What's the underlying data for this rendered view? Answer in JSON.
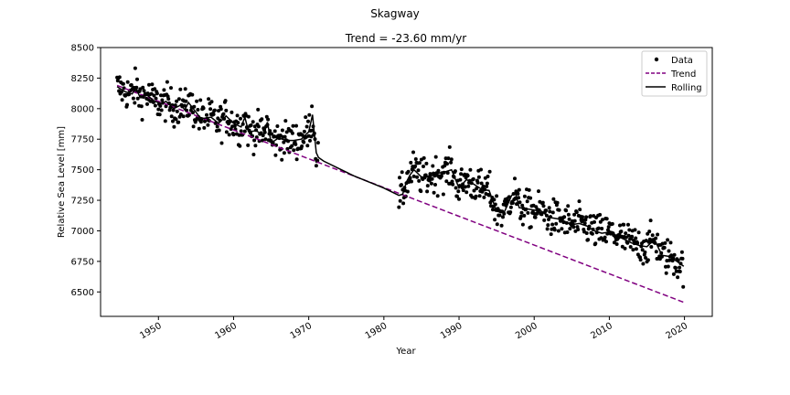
{
  "chart_data": {
    "type": "scatter",
    "suptitle": "Skagway",
    "title": "Trend = -23.60 mm/yr",
    "xlabel": "Year",
    "ylabel": "Relative Sea Level [mm]",
    "xlim": [
      1942.3,
      2023.7
    ],
    "ylim": [
      6300,
      8500
    ],
    "xticks": [
      1950,
      1960,
      1970,
      1980,
      1990,
      2000,
      2010,
      2020
    ],
    "yticks": [
      6500,
      6750,
      7000,
      7250,
      7500,
      7750,
      8000,
      8250,
      8500
    ],
    "grid": false,
    "legend_position": "top-right",
    "colors": {
      "data": "#000000",
      "trend": "#800080",
      "rolling": "#000000"
    },
    "series": [
      {
        "name": "Data",
        "kind": "points"
      },
      {
        "name": "Trend",
        "kind": "dashed-line",
        "x": [
          1944.5,
          2019.9
        ],
        "y": [
          8190,
          6415
        ]
      },
      {
        "name": "Rolling",
        "kind": "line",
        "x": [
          1944.5,
          1945.5,
          1946.5,
          1947.0,
          1947.5,
          1948.5,
          1949.5,
          1950.5,
          1951.0,
          1952.0,
          1953.0,
          1953.5,
          1954.0,
          1955.0,
          1955.5,
          1956.0,
          1957.0,
          1958.0,
          1959.0,
          1960.0,
          1961.0,
          1961.5,
          1962.0,
          1963.0,
          1964.0,
          1964.5,
          1965.0,
          1966.0,
          1967.0,
          1968.0,
          1969.0,
          1970.0,
          1970.5,
          1971.0,
          1971.3,
          1972.0,
          1976.0,
          1980.0,
          1982.0,
          1982.5,
          1983.0,
          1983.5,
          1984.0,
          1985.0,
          1986.0,
          1987.0,
          1988.0,
          1989.0,
          1990.0,
          1991.0,
          1992.0,
          1993.0,
          1994.0,
          1995.0,
          1996.0,
          1997.0,
          1997.5,
          1998.0,
          1999.0,
          2000.0,
          2001.0,
          2002.0,
          2003.0,
          2004.0,
          2005.0,
          2006.0,
          2007.0,
          2008.0,
          2009.0,
          2010.0,
          2011.0,
          2012.0,
          2013.0,
          2014.0,
          2015.0,
          2016.0,
          2017.0,
          2018.0,
          2019.0,
          2019.9
        ],
        "y": [
          8180,
          8140,
          8120,
          8170,
          8100,
          8110,
          8060,
          8040,
          8060,
          8000,
          8030,
          7990,
          8050,
          7970,
          7930,
          7920,
          7930,
          7880,
          7940,
          7880,
          7850,
          7930,
          7810,
          7820,
          7780,
          7890,
          7720,
          7760,
          7740,
          7740,
          7750,
          7810,
          7950,
          7640,
          7600,
          7570,
          7450,
          7350,
          7290,
          7300,
          7400,
          7460,
          7500,
          7440,
          7440,
          7470,
          7480,
          7500,
          7350,
          7420,
          7380,
          7340,
          7330,
          7160,
          7150,
          7290,
          7310,
          7190,
          7180,
          7170,
          7160,
          7110,
          7100,
          7080,
          7050,
          7060,
          7040,
          7000,
          6980,
          6990,
          6960,
          6930,
          6900,
          6880,
          6870,
          6930,
          6800,
          6790,
          6750,
          6710
        ]
      }
    ]
  }
}
